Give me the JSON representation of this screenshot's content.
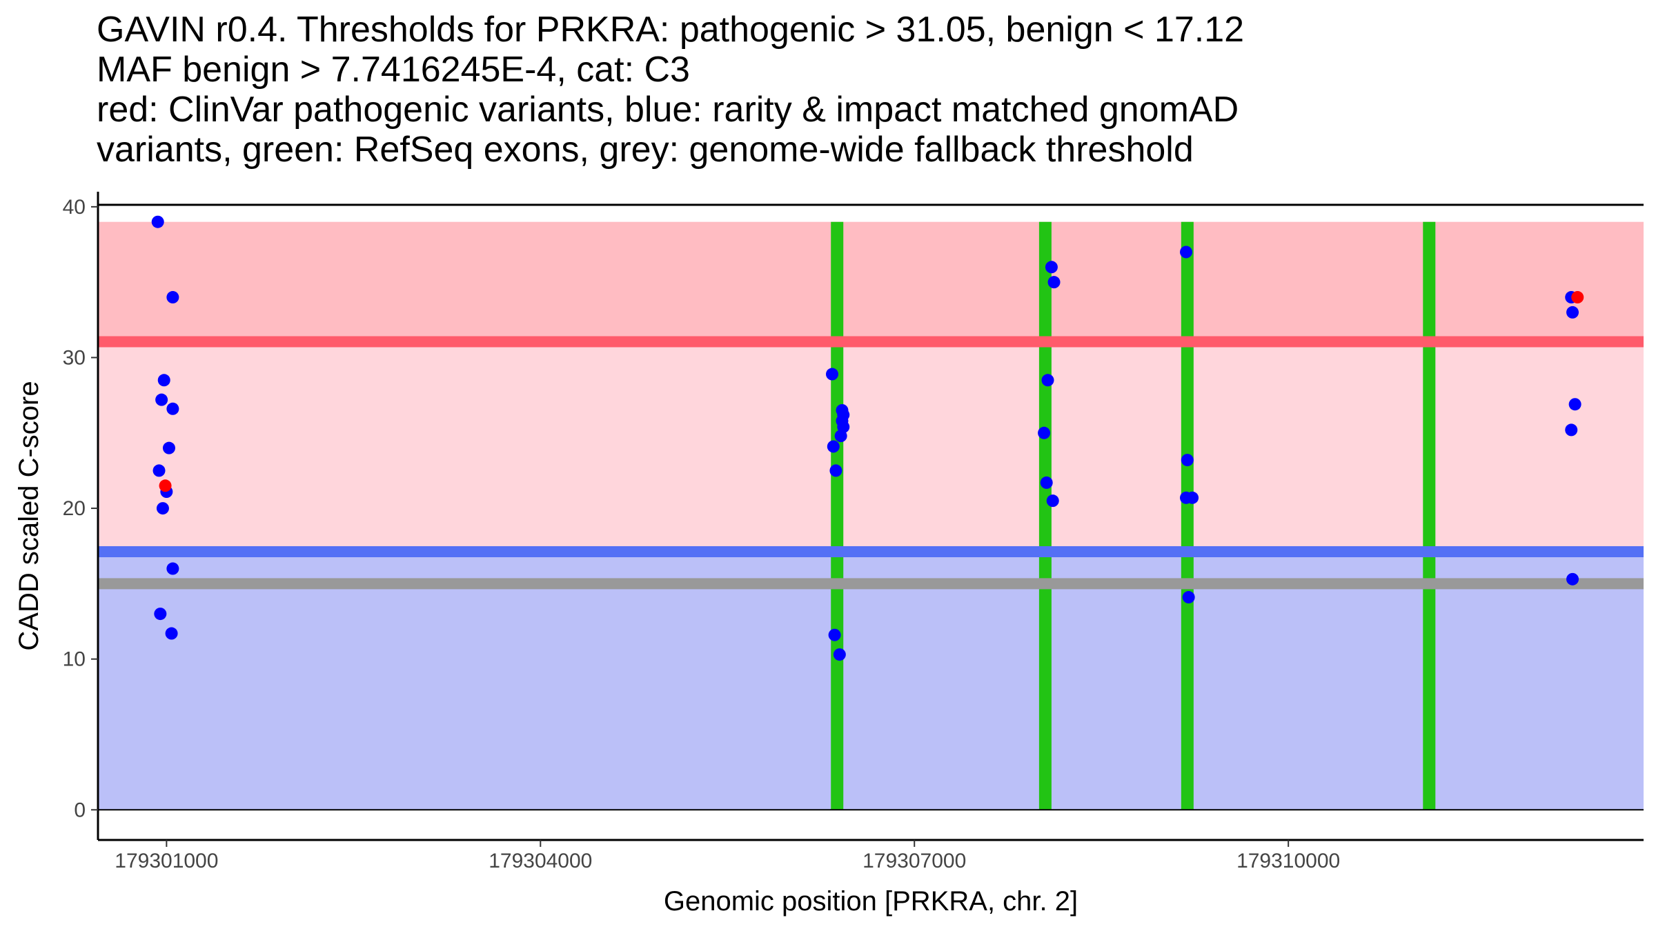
{
  "title_lines": [
    "GAVIN r0.4. Thresholds for PRKRA: pathogenic > 31.05, benign < 17.12",
    "MAF benign > 7.7416245E-4, cat: C3",
    "red: ClinVar pathogenic variants, blue: rarity & impact matched gnomAD",
    "variants, green: RefSeq exons, grey: genome-wide fallback threshold"
  ],
  "chart_data": {
    "type": "scatter",
    "xlabel": "Genomic position [PRKRA, chr. 2]",
    "ylabel": "CADD scaled C-score",
    "xlim": [
      179300450,
      179312850
    ],
    "ylim": [
      -2,
      41
    ],
    "x_ticks": [
      179301000,
      179304000,
      179307000,
      179310000
    ],
    "x_tick_labels": [
      "179301000",
      "179304000",
      "179307000",
      "179310000"
    ],
    "y_ticks": [
      0,
      10,
      20,
      30,
      40
    ],
    "y_tick_labels": [
      "0",
      "10",
      "20",
      "30",
      "40"
    ],
    "thresholds": {
      "pathogenic": 31.05,
      "benign": 17.12,
      "fallback": 15,
      "top": 39,
      "bottom": 0
    },
    "colors": {
      "pathogenic_band": "#ffbcc2",
      "middle_band": "#ffd6dc",
      "benign_band": "#bbc0f8",
      "pathogenic_line": "#ff5b6b",
      "benign_line": "#5470f5",
      "fallback_line": "#999999",
      "exon": "#22c414",
      "gnomad_point": "#0000ff",
      "clinvar_point": "#ff0000"
    },
    "exons": [
      179306380,
      179308050,
      179309190,
      179311130
    ],
    "series": [
      {
        "name": "gnomAD",
        "points": [
          [
            179300930,
            39
          ],
          [
            179301050,
            34
          ],
          [
            179300980,
            28.5
          ],
          [
            179300960,
            27.2
          ],
          [
            179301050,
            26.6
          ],
          [
            179301020,
            24
          ],
          [
            179300940,
            22.5
          ],
          [
            179301000,
            21.1
          ],
          [
            179300970,
            20
          ],
          [
            179301050,
            16
          ],
          [
            179300950,
            13
          ],
          [
            179301040,
            11.7
          ],
          [
            179306340,
            28.9
          ],
          [
            179306420,
            26.5
          ],
          [
            179306430,
            26.2
          ],
          [
            179306420,
            25.8
          ],
          [
            179306430,
            25.4
          ],
          [
            179306410,
            24.8
          ],
          [
            179306350,
            24.1
          ],
          [
            179306370,
            22.5
          ],
          [
            179306360,
            11.6
          ],
          [
            179306400,
            10.3
          ],
          [
            179308100,
            36
          ],
          [
            179308120,
            35
          ],
          [
            179308070,
            28.5
          ],
          [
            179308040,
            25
          ],
          [
            179308060,
            21.7
          ],
          [
            179308110,
            20.5
          ],
          [
            179309180,
            37
          ],
          [
            179309190,
            23.2
          ],
          [
            179309180,
            20.7
          ],
          [
            179309230,
            20.7
          ],
          [
            179309200,
            14.1
          ],
          [
            179312270,
            34
          ],
          [
            179312280,
            33
          ],
          [
            179312300,
            26.9
          ],
          [
            179312270,
            25.2
          ],
          [
            179312280,
            15.3
          ]
        ]
      },
      {
        "name": "ClinVar",
        "points": [
          [
            179300990,
            21.5
          ],
          [
            179312320,
            34
          ]
        ]
      }
    ]
  }
}
